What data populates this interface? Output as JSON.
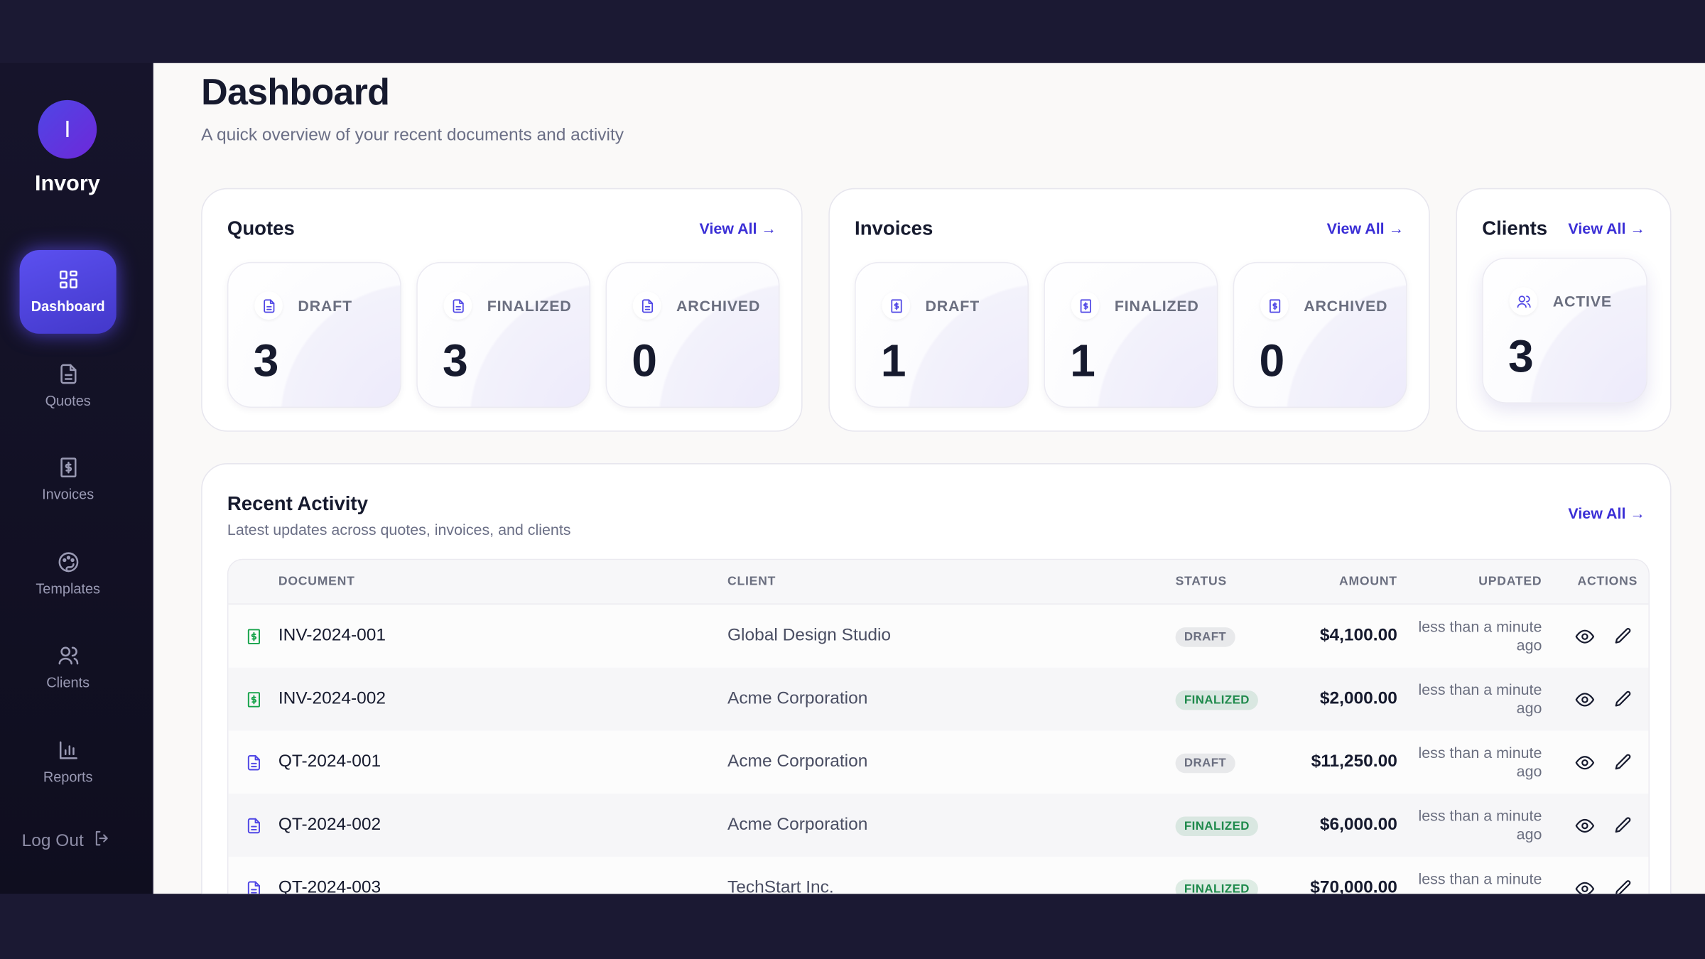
{
  "sidebar": {
    "logo_letter": "I",
    "brand": "Invory",
    "nav": [
      "Dashboard",
      "Quotes",
      "Invoices",
      "Templates",
      "Clients",
      "Reports"
    ],
    "logout": "Log Out"
  },
  "header": {
    "title": "Dashboard",
    "subtitle": "A quick overview of your recent documents and activity"
  },
  "cards": [
    {
      "title": "Quotes",
      "link": "View All →",
      "stats": [
        {
          "label": "DRAFT",
          "value": 3
        },
        {
          "label": "FINALIZED",
          "value": 3
        },
        {
          "label": "ARCHIVED",
          "value": 0
        }
      ]
    },
    {
      "title": "Invoices",
      "link": "View All →",
      "stats": [
        {
          "label": "DRAFT",
          "value": 1
        },
        {
          "label": "FINALIZED",
          "value": 1
        },
        {
          "label": "ARCHIVED",
          "value": 0
        }
      ]
    },
    {
      "title": "Clients",
      "link": "View All →",
      "stats": [
        {
          "label": "ACTIVE",
          "value": 3
        }
      ]
    }
  ],
  "activity": {
    "title": "Recent Activity",
    "subtitle": "Latest updates across quotes, invoices, and clients",
    "link": "View All →",
    "columns": [
      "DOCUMENT",
      "CLIENT",
      "STATUS",
      "AMOUNT",
      "UPDATED",
      "ACTIONS"
    ],
    "rows": [
      {
        "icon": "invoice",
        "document": "INV-2024-001",
        "client": "Global Design Studio",
        "status": "DRAFT",
        "status_color": "#6b6f80",
        "amount": "$4,100.00",
        "updated": "less than a minute ago"
      },
      {
        "icon": "invoice",
        "document": "INV-2024-002",
        "client": "Acme Corporation",
        "status": "FINALIZED",
        "status_color": "#1f8a4c",
        "amount": "$2,000.00",
        "updated": "less than a minute ago"
      },
      {
        "icon": "quote",
        "document": "QT-2024-001",
        "client": "Acme Corporation",
        "status": "DRAFT",
        "status_color": "#6b6f80",
        "amount": "$11,250.00",
        "updated": "less than a minute ago"
      },
      {
        "icon": "quote",
        "document": "QT-2024-002",
        "client": "Acme Corporation",
        "status": "FINALIZED",
        "status_color": "#1f8a4c",
        "amount": "$6,000.00",
        "updated": "less than a minute ago"
      },
      {
        "icon": "quote",
        "document": "QT-2024-003",
        "client": "TechStart Inc.",
        "status": "FINALIZED",
        "status_color": "#1f8a4c",
        "amount": "$70,000.00",
        "updated": "less than a minute ago"
      }
    ]
  }
}
